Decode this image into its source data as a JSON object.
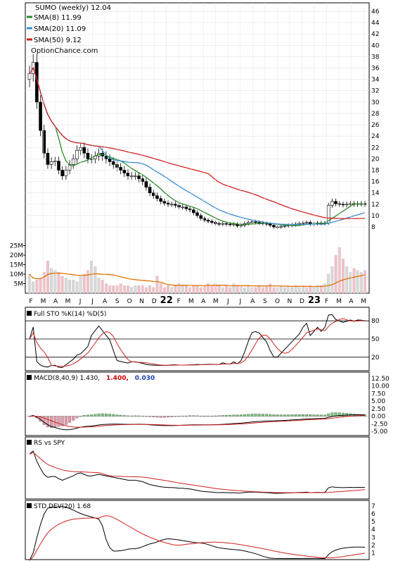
{
  "chart_data": [
    {
      "type": "candlestick",
      "title": "SUMO (weekly) 12.04",
      "source_label": "OptionChance.com",
      "legend": [
        {
          "label": "SMA(8) 11.99",
          "color": "#2a8a2a"
        },
        {
          "label": "SMA(20) 11.09",
          "color": "#3a8fd0"
        },
        {
          "label": "SMA(50) 9.12",
          "color": "#d02020"
        }
      ],
      "price_axis_ticks": [
        8,
        10,
        12,
        14,
        16,
        18,
        20,
        22,
        24,
        26,
        28,
        30,
        32,
        34,
        36,
        38,
        40,
        42,
        44,
        46
      ],
      "price_range": [
        6.5,
        47
      ],
      "volume_axis_ticks": [
        "5M",
        "10M",
        "15M",
        "20M",
        "25M"
      ],
      "x_ticks": [
        "F",
        "M",
        "A",
        "M",
        "J",
        "J",
        "A",
        "S",
        "O",
        "N",
        "D",
        "22",
        "F",
        "M",
        "A",
        "M",
        "J",
        "J",
        "A",
        "S",
        "O",
        "N",
        "D",
        "23",
        "F",
        "M",
        "A",
        "M"
      ],
      "year_ticks": [
        "22",
        "23"
      ],
      "close": [
        35,
        37,
        30,
        25,
        21,
        19,
        19.5,
        19.6,
        18,
        17,
        18,
        19,
        20,
        21.5,
        22,
        21,
        20,
        20,
        20.5,
        21,
        20.5,
        20,
        19.5,
        19,
        18.5,
        18,
        17.5,
        17,
        17,
        17,
        16.5,
        16,
        15,
        14,
        13.5,
        13,
        12.5,
        12.2,
        12,
        12,
        11.8,
        11.5,
        11.5,
        11.2,
        11,
        10.5,
        10,
        9.5,
        9.2,
        9,
        8.8,
        8.6,
        8.5,
        8.6,
        8.5,
        8.4,
        8.5,
        8.2,
        8.3,
        8.6,
        8.8,
        8.9,
        8.8,
        8.7,
        8.6,
        8.5,
        8.3,
        8,
        8,
        8.1,
        8.2,
        8.3,
        8.4,
        8.5,
        8.6,
        8.7,
        8.8,
        8.5,
        8.6,
        8.7,
        8.6,
        8.7,
        11.8,
        12.5,
        12.1,
        12,
        11.9,
        12,
        12.1,
        12,
        12.1,
        12.1,
        12.04
      ],
      "volume_millions": [
        10,
        6,
        7,
        8,
        11,
        17,
        13,
        12,
        11,
        9,
        8,
        7,
        7,
        6,
        9,
        10,
        12,
        17,
        14,
        8,
        7,
        5,
        4,
        4,
        4,
        5,
        4,
        4,
        3,
        4,
        4,
        4,
        3,
        4,
        3,
        9,
        5,
        3,
        4,
        3,
        4,
        5,
        4,
        4,
        3,
        4,
        4,
        3,
        4,
        5,
        4,
        5,
        4,
        3,
        4,
        3,
        5,
        4,
        4,
        3,
        4,
        3,
        3,
        4,
        3,
        4,
        5,
        3,
        3,
        4,
        3,
        4,
        3,
        4,
        3,
        4,
        3,
        4,
        3,
        4,
        4,
        5,
        10,
        14,
        20,
        24,
        18,
        14,
        11,
        13,
        12,
        11,
        12
      ],
      "sto_axis_ticks": [
        20,
        50,
        80
      ],
      "sto_label": "Full STO %K(14) %D(5)",
      "macd_label": "MACD(8,40,9) 1.430,",
      "macd_value_1": "1.400,",
      "macd_value_2": "0.030",
      "macd_axis_ticks": [
        "12.50",
        "10.00",
        "7.50",
        "5.00",
        "2.50",
        "0.00",
        "-2.50",
        "-5.00"
      ],
      "rs_label": "RS vs SPY",
      "std_label": "STD DEV(20) 1.68",
      "std_axis_ticks": [
        1,
        2,
        3,
        4,
        5,
        6,
        7
      ]
    }
  ]
}
